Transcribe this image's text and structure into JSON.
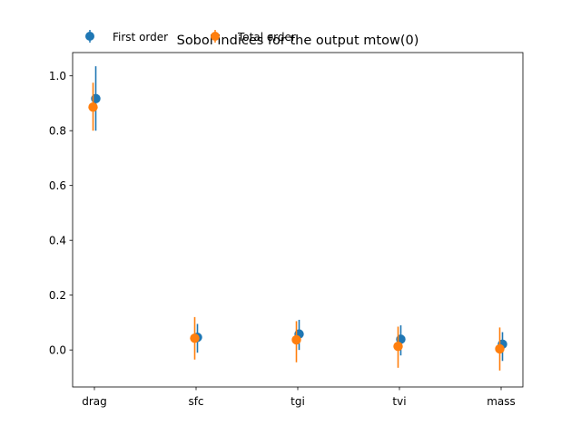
{
  "chart_data": {
    "type": "scatter",
    "title": "Sobol indices for the output mtow(0)",
    "xlabel": "",
    "ylabel": "",
    "categories": [
      "drag",
      "sfc",
      "tgi",
      "tvi",
      "mass"
    ],
    "ylim": [
      -0.135,
      1.085
    ],
    "yticks": [
      "0.0",
      "0.2",
      "0.4",
      "0.6",
      "0.8",
      "1.0"
    ],
    "grid": false,
    "legend": {
      "placement": "top-left",
      "ncol": 2
    },
    "series": [
      {
        "name": "First order",
        "color": "#1f77b4",
        "values": [
          0.917,
          0.046,
          0.058,
          0.039,
          0.021
        ],
        "err_low": [
          0.8,
          -0.01,
          0.0,
          -0.02,
          -0.04
        ],
        "err_high": [
          1.035,
          0.095,
          0.11,
          0.09,
          0.065
        ]
      },
      {
        "name": "Total order",
        "color": "#ff7f0e",
        "values": [
          0.886,
          0.043,
          0.037,
          0.013,
          0.004
        ],
        "err_low": [
          0.8,
          -0.035,
          -0.045,
          -0.065,
          -0.075
        ],
        "err_high": [
          0.975,
          0.12,
          0.105,
          0.085,
          0.082
        ]
      }
    ]
  }
}
